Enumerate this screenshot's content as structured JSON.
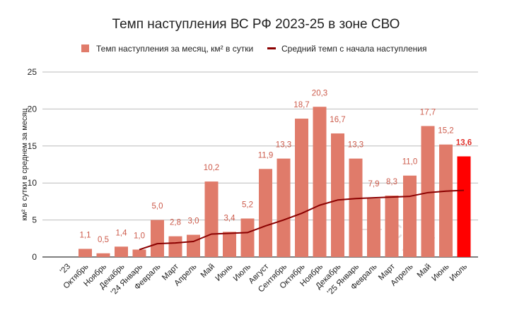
{
  "chart_data": {
    "type": "bar",
    "title": "Темп наступления ВС РФ 2023-25 в зоне СВО",
    "ylabel": "км² в сутки в среднем за месяц",
    "xlabel": "",
    "ylim": [
      0,
      25
    ],
    "yticks": [
      "0",
      "5",
      "10",
      "15",
      "20",
      "25"
    ],
    "grid": true,
    "legend_position": "top",
    "categories": [
      "'23",
      "Октябрь",
      "Ноябрь",
      "Декабрь",
      "'24 Январь",
      "Февраль",
      "Март",
      "Апрель",
      "Май",
      "Июнь",
      "Июль",
      "Август",
      "Сентябрь",
      "Октябрь",
      "Ноябрь",
      "Декабрь",
      "'25 Январь",
      "Февраль",
      "Март",
      "Апрель",
      "Май",
      "Июнь",
      "Июль"
    ],
    "series": [
      {
        "name": "Темп наступления за месяц, км² в сутки",
        "type": "bar",
        "color": "#e07b6a",
        "highlight_color": "#ff0000",
        "values": [
          null,
          1.1,
          0.5,
          1.4,
          1.0,
          5.0,
          2.8,
          3.0,
          10.2,
          3.4,
          5.2,
          11.9,
          13.3,
          18.7,
          20.3,
          16.7,
          13.3,
          7.9,
          8.3,
          11.0,
          17.7,
          15.2,
          13.6
        ],
        "labels": [
          "",
          "1,1",
          "0,5",
          "1,4",
          "1,0",
          "5,0",
          "2,8",
          "3,0",
          "10,2",
          "3,4",
          "5,2",
          "11,9",
          "13,3",
          "18,7",
          "20,3",
          "16,7",
          "13,3",
          "7,9",
          "8,3",
          "11,0",
          "17,7",
          "15,2",
          "13,6"
        ]
      },
      {
        "name": "Средний темп с начала наступления",
        "type": "line",
        "color": "#8b0000",
        "values": [
          null,
          null,
          null,
          null,
          1.0,
          1.8,
          1.9,
          2.1,
          3.1,
          3.2,
          3.3,
          4.2,
          5.0,
          5.9,
          7.0,
          7.7,
          7.9,
          8.0,
          8.1,
          8.2,
          8.7,
          8.9,
          9.0
        ]
      }
    ]
  }
}
